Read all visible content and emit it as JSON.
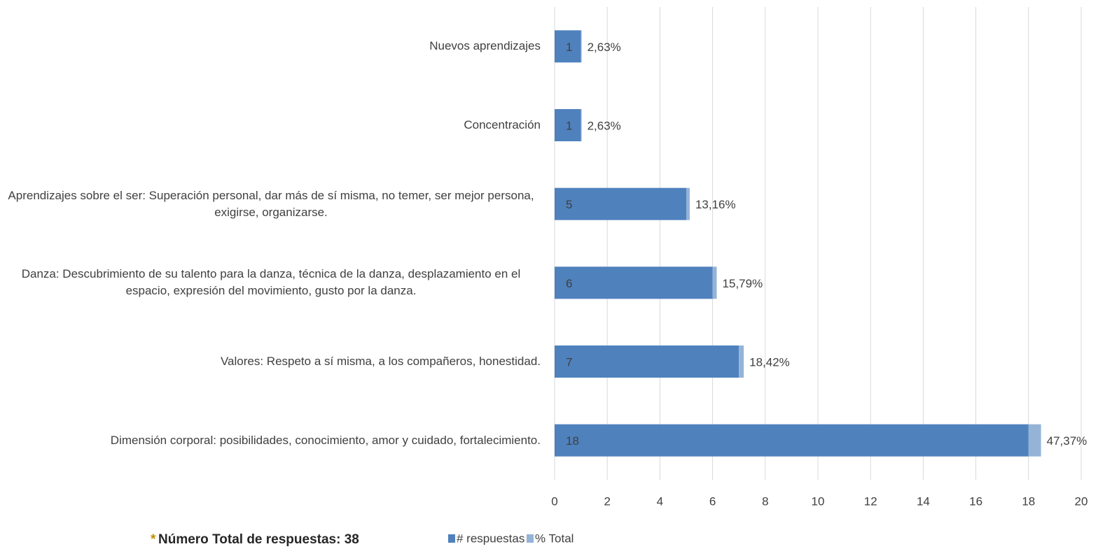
{
  "chart_data": {
    "type": "stacked_barh",
    "categories": [
      "Nuevos aprendizajes",
      "Concentración",
      "Aprendizajes sobre el ser: Superación personal, dar más de sí misma, no temer, ser mejor persona, exigirse, organizarse.",
      "Danza: Descubrimiento de su talento para la danza, técnica de la danza, desplazamiento en el espacio, expresión del movimiento, gusto por la danza.",
      "Valores: Respeto a sí misma, a los compañeros, honestidad.",
      "Dimensión corporal: posibilidades, conocimiento, amor y cuidado, fortalecimiento."
    ],
    "series": [
      {
        "name": "# respuestas",
        "color": "#4f81bd",
        "values": [
          1,
          1,
          5,
          6,
          7,
          18
        ]
      },
      {
        "name": "% Total",
        "color": "#95b3d7",
        "values": [
          0.0263,
          0.0263,
          0.1316,
          0.1579,
          0.1842,
          0.4737
        ],
        "value_labels": [
          "2,63%",
          "2,63%",
          "13,16%",
          "15,79%",
          "18,42%",
          "47,37%"
        ]
      }
    ],
    "xlim": [
      0,
      20
    ],
    "xticks": [
      0,
      2,
      4,
      6,
      8,
      10,
      12,
      14,
      16,
      18,
      20
    ],
    "grid": true,
    "legend": "bottom",
    "note_marker": "*",
    "note": "Número Total de respuestas: 38"
  }
}
